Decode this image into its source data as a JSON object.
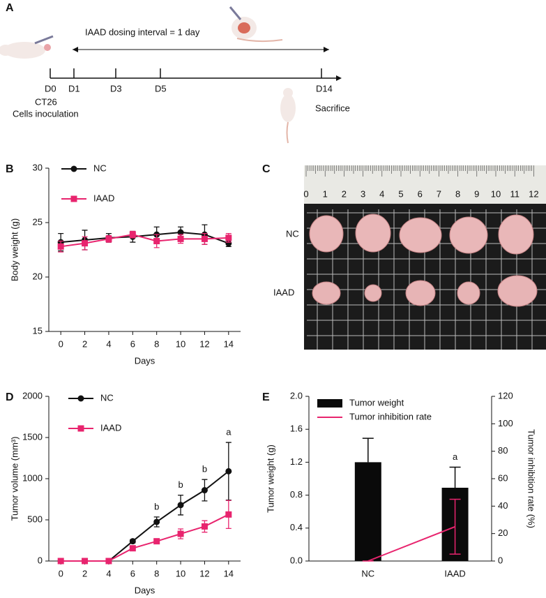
{
  "timeline": {
    "panel": "A",
    "interval_label": "IAAD dosing interval = 1 day",
    "days": [
      "D0",
      "D1",
      "D3",
      "D5",
      "D14"
    ],
    "start_line1": "CT26",
    "start_line2": "Cells inoculation",
    "end_label": "Sacrifice"
  },
  "photo": {
    "panel": "C",
    "ruler": [
      0,
      1,
      2,
      3,
      4,
      5,
      6,
      7,
      8,
      9,
      10,
      11,
      12
    ],
    "rows": [
      "NC",
      "IAAD"
    ]
  },
  "chart_data": [
    {
      "type": "line",
      "panel": "B",
      "xlabel": "Days",
      "ylabel": "Body weight (g)",
      "x": [
        0,
        2,
        4,
        6,
        8,
        10,
        12,
        14
      ],
      "xlim": [
        -1,
        15
      ],
      "xticks": [
        0,
        2,
        4,
        6,
        8,
        10,
        12,
        14
      ],
      "ylim": [
        15,
        30
      ],
      "yticks": [
        15,
        20,
        25,
        30
      ],
      "series": [
        {
          "name": "NC",
          "color": "#111111",
          "marker": "circle",
          "values": [
            23.2,
            23.4,
            23.6,
            23.7,
            23.9,
            24.1,
            23.9,
            23.1
          ],
          "errors": [
            0.8,
            0.9,
            0.4,
            0.5,
            0.7,
            0.5,
            0.9,
            0.3
          ]
        },
        {
          "name": "IAAD",
          "color": "#e8246e",
          "marker": "square",
          "values": [
            22.8,
            23.1,
            23.5,
            23.9,
            23.3,
            23.5,
            23.5,
            23.6
          ],
          "errors": [
            0.5,
            0.6,
            0.3,
            0.3,
            0.6,
            0.4,
            0.5,
            0.4
          ]
        }
      ]
    },
    {
      "type": "line",
      "panel": "D",
      "xlabel": "Days",
      "ylabel": "Tumor volume (mm³)",
      "x": [
        0,
        2,
        4,
        6,
        8,
        10,
        12,
        14
      ],
      "xlim": [
        -1,
        15
      ],
      "xticks": [
        0,
        2,
        4,
        6,
        8,
        10,
        12,
        14
      ],
      "ylim": [
        0,
        2000
      ],
      "yticks": [
        0,
        500,
        1000,
        1500,
        2000
      ],
      "series": [
        {
          "name": "NC",
          "color": "#111111",
          "marker": "circle",
          "values": [
            0,
            0,
            0,
            240,
            475,
            680,
            860,
            1090
          ],
          "errors": [
            0,
            0,
            0,
            20,
            60,
            120,
            130,
            350
          ]
        },
        {
          "name": "IAAD",
          "color": "#e8246e",
          "marker": "square",
          "values": [
            0,
            0,
            0,
            155,
            240,
            330,
            420,
            565
          ],
          "errors": [
            0,
            0,
            0,
            15,
            30,
            60,
            70,
            170
          ]
        }
      ],
      "annotations": [
        {
          "text": "b",
          "x": 8
        },
        {
          "text": "b",
          "x": 10
        },
        {
          "text": "b",
          "x": 12
        },
        {
          "text": "a",
          "x": 14
        }
      ]
    },
    {
      "type": "bar",
      "panel": "E",
      "ylabel": "Tumor weight (g)",
      "y2label": "Tumor inhibition rate (%)",
      "categories": [
        "NC",
        "IAAD"
      ],
      "ylim": [
        0,
        2
      ],
      "yticks": [
        {
          "value": 0,
          "label": "0.0"
        },
        0.4,
        0.8,
        1.2,
        1.6,
        {
          "value": 2,
          "label": "2.0"
        }
      ],
      "y2lim": [
        0,
        120
      ],
      "y2ticks": [
        0,
        20,
        40,
        60,
        80,
        100,
        120
      ],
      "series": [
        {
          "name": "Tumor weight",
          "color": "#0a0a0a",
          "values": [
            1.2,
            0.89
          ],
          "errors": [
            0.29,
            0.25
          ]
        },
        {
          "name": "Tumor inhibition rate",
          "color": "#e8246e",
          "axis": "y2",
          "values": [
            0,
            25
          ],
          "errors": [
            0,
            20
          ]
        }
      ],
      "annotations": [
        {
          "text": "a",
          "x": "IAAD"
        }
      ]
    }
  ]
}
